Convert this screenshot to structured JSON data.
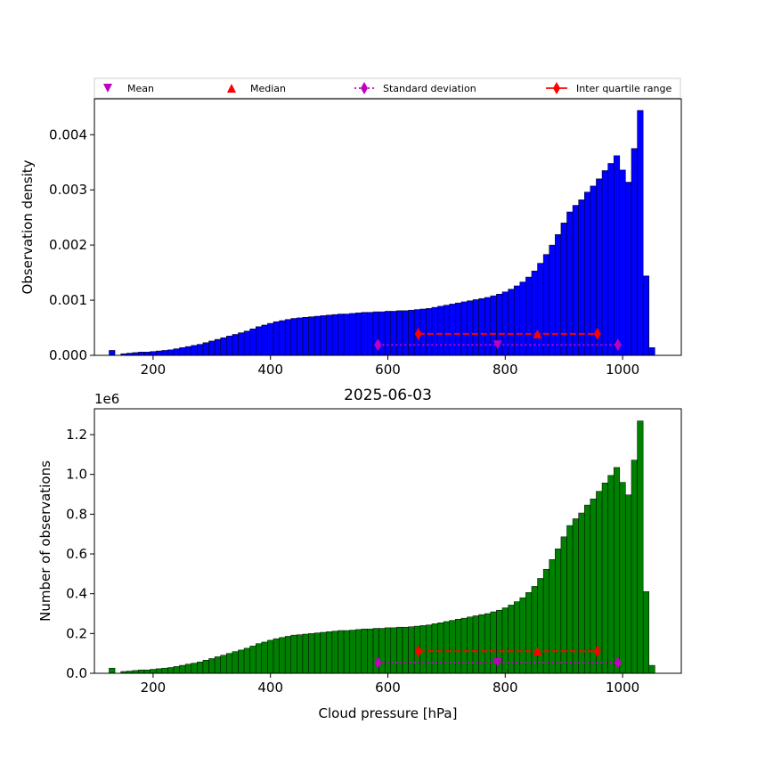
{
  "legend": {
    "items": [
      {
        "label": "Mean",
        "color": "#bf00bf",
        "marker": "triangle-down"
      },
      {
        "label": "Median",
        "color": "#ff0000",
        "marker": "triangle-up"
      },
      {
        "label": "Standard deviation",
        "color": "#bf00bf",
        "marker": "thin-diamond",
        "line": "dotted"
      },
      {
        "label": "Inter quartile range",
        "color": "#ff0000",
        "marker": "thin-diamond",
        "line": "solid"
      }
    ]
  },
  "chart_data": [
    {
      "type": "bar",
      "title": "",
      "xlabel": "",
      "ylabel": "Observation density",
      "xlim": [
        100,
        1100
      ],
      "ylim": [
        0,
        0.00465
      ],
      "xticks": [
        200,
        400,
        600,
        800,
        1000
      ],
      "yticks": [
        0.0,
        0.001,
        0.002,
        0.003,
        0.004
      ],
      "ytick_labels": [
        "0.000",
        "0.001",
        "0.002",
        "0.003",
        "0.004"
      ],
      "bar_color": "#0000ff",
      "bin_start": 130,
      "bin_width": 10,
      "values": [
        9e-05,
        0.0,
        3e-05,
        4e-05,
        5e-05,
        6e-05,
        6e-05,
        7e-05,
        8e-05,
        9e-05,
        0.0001,
        0.00012,
        0.00014,
        0.00016,
        0.00018,
        0.0002,
        0.00023,
        0.00026,
        0.00029,
        0.00032,
        0.00035,
        0.00038,
        0.00041,
        0.00044,
        0.00048,
        0.00052,
        0.00055,
        0.00058,
        0.00061,
        0.00063,
        0.00065,
        0.00067,
        0.00068,
        0.00069,
        0.0007,
        0.00071,
        0.00072,
        0.00073,
        0.00074,
        0.00075,
        0.00075,
        0.00076,
        0.00077,
        0.00078,
        0.00078,
        0.00079,
        0.00079,
        0.0008,
        0.0008,
        0.00081,
        0.00081,
        0.00082,
        0.00083,
        0.00084,
        0.00085,
        0.00087,
        0.00089,
        0.00091,
        0.00093,
        0.00095,
        0.00097,
        0.00099,
        0.00101,
        0.00103,
        0.00105,
        0.00108,
        0.00111,
        0.00115,
        0.0012,
        0.00126,
        0.00133,
        0.00142,
        0.00153,
        0.00167,
        0.00183,
        0.002,
        0.00219,
        0.0024,
        0.0026,
        0.00272,
        0.00282,
        0.00296,
        0.00307,
        0.0032,
        0.00335,
        0.00348,
        0.00362,
        0.00336,
        0.00314,
        0.00375,
        0.00444,
        0.00144,
        0.00014
      ],
      "stats": {
        "mean": {
          "x": 787,
          "y": 0.00019
        },
        "median": {
          "x": 855,
          "y": 0.00039
        },
        "std": {
          "x": [
            583,
            992
          ],
          "y": 0.00019
        },
        "iqr": {
          "x": [
            652,
            957
          ],
          "y": 0.00039
        }
      }
    },
    {
      "type": "bar",
      "title": "2025-06-03",
      "xlabel": "Cloud pressure [hPa]",
      "ylabel": "Number of observations",
      "axis_offset_label": "1e6",
      "xlim": [
        100,
        1100
      ],
      "ylim": [
        0,
        1.33
      ],
      "y_multiplier": 1000000,
      "xticks": [
        200,
        400,
        600,
        800,
        1000
      ],
      "yticks": [
        0.0,
        0.2,
        0.4,
        0.6,
        0.8,
        1.0,
        1.2
      ],
      "ytick_labels": [
        "0.0",
        "0.2",
        "0.4",
        "0.6",
        "0.8",
        "1.0",
        "1.2"
      ],
      "bar_color": "#008000",
      "bin_start": 130,
      "bin_width": 10,
      "values": [
        0.026,
        0.0,
        0.009,
        0.011,
        0.014,
        0.017,
        0.017,
        0.02,
        0.023,
        0.026,
        0.029,
        0.034,
        0.04,
        0.046,
        0.051,
        0.057,
        0.066,
        0.074,
        0.083,
        0.091,
        0.1,
        0.109,
        0.117,
        0.126,
        0.137,
        0.149,
        0.157,
        0.166,
        0.174,
        0.18,
        0.186,
        0.192,
        0.194,
        0.197,
        0.2,
        0.203,
        0.206,
        0.209,
        0.212,
        0.215,
        0.215,
        0.217,
        0.22,
        0.223,
        0.223,
        0.226,
        0.226,
        0.229,
        0.229,
        0.232,
        0.232,
        0.234,
        0.237,
        0.24,
        0.243,
        0.249,
        0.254,
        0.26,
        0.266,
        0.272,
        0.277,
        0.283,
        0.289,
        0.295,
        0.3,
        0.309,
        0.317,
        0.329,
        0.343,
        0.36,
        0.38,
        0.406,
        0.437,
        0.477,
        0.523,
        0.572,
        0.626,
        0.686,
        0.743,
        0.777,
        0.806,
        0.846,
        0.877,
        0.915,
        0.957,
        0.995,
        1.035,
        0.96,
        0.897,
        1.072,
        1.269,
        0.411,
        0.04
      ],
      "stats": {
        "mean": {
          "x": 787,
          "y": 0.054
        },
        "median": {
          "x": 855,
          "y": 0.111
        },
        "std": {
          "x": [
            583,
            992
          ],
          "y": 0.054
        },
        "iqr": {
          "x": [
            652,
            957
          ],
          "y": 0.111
        }
      }
    }
  ]
}
